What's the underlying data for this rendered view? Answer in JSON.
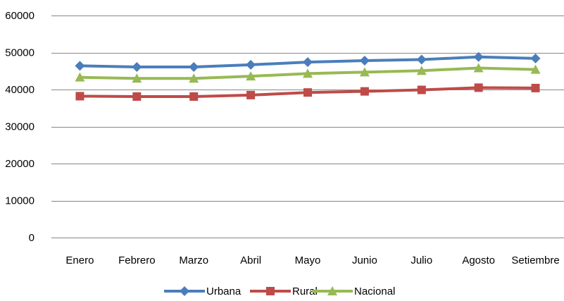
{
  "chart_data": {
    "type": "line",
    "title": "",
    "xlabel": "",
    "ylabel": "",
    "categories": [
      "Enero",
      "Febrero",
      "Marzo",
      "Abril",
      "Mayo",
      "Junio",
      "Julio",
      "Agosto",
      "Setiembre"
    ],
    "y_ticks": [
      "0",
      "10000",
      "20000",
      "30000",
      "40000",
      "50000",
      "60000"
    ],
    "ylim": [
      0,
      60000
    ],
    "grid": "horizontal",
    "legend_position": "bottom",
    "series": [
      {
        "name": "Urbana",
        "color": "#4a7ebb",
        "marker": "diamond",
        "values": [
          46400,
          46100,
          46100,
          46700,
          47400,
          47800,
          48100,
          48800,
          48400
        ]
      },
      {
        "name": "Rural",
        "color": "#be4b48",
        "marker": "square",
        "values": [
          38200,
          38100,
          38100,
          38500,
          39200,
          39500,
          39900,
          40500,
          40400
        ]
      },
      {
        "name": "Nacional",
        "color": "#98b954",
        "marker": "triangle",
        "values": [
          43300,
          43000,
          43000,
          43600,
          44300,
          44700,
          45100,
          45800,
          45400
        ]
      }
    ]
  }
}
